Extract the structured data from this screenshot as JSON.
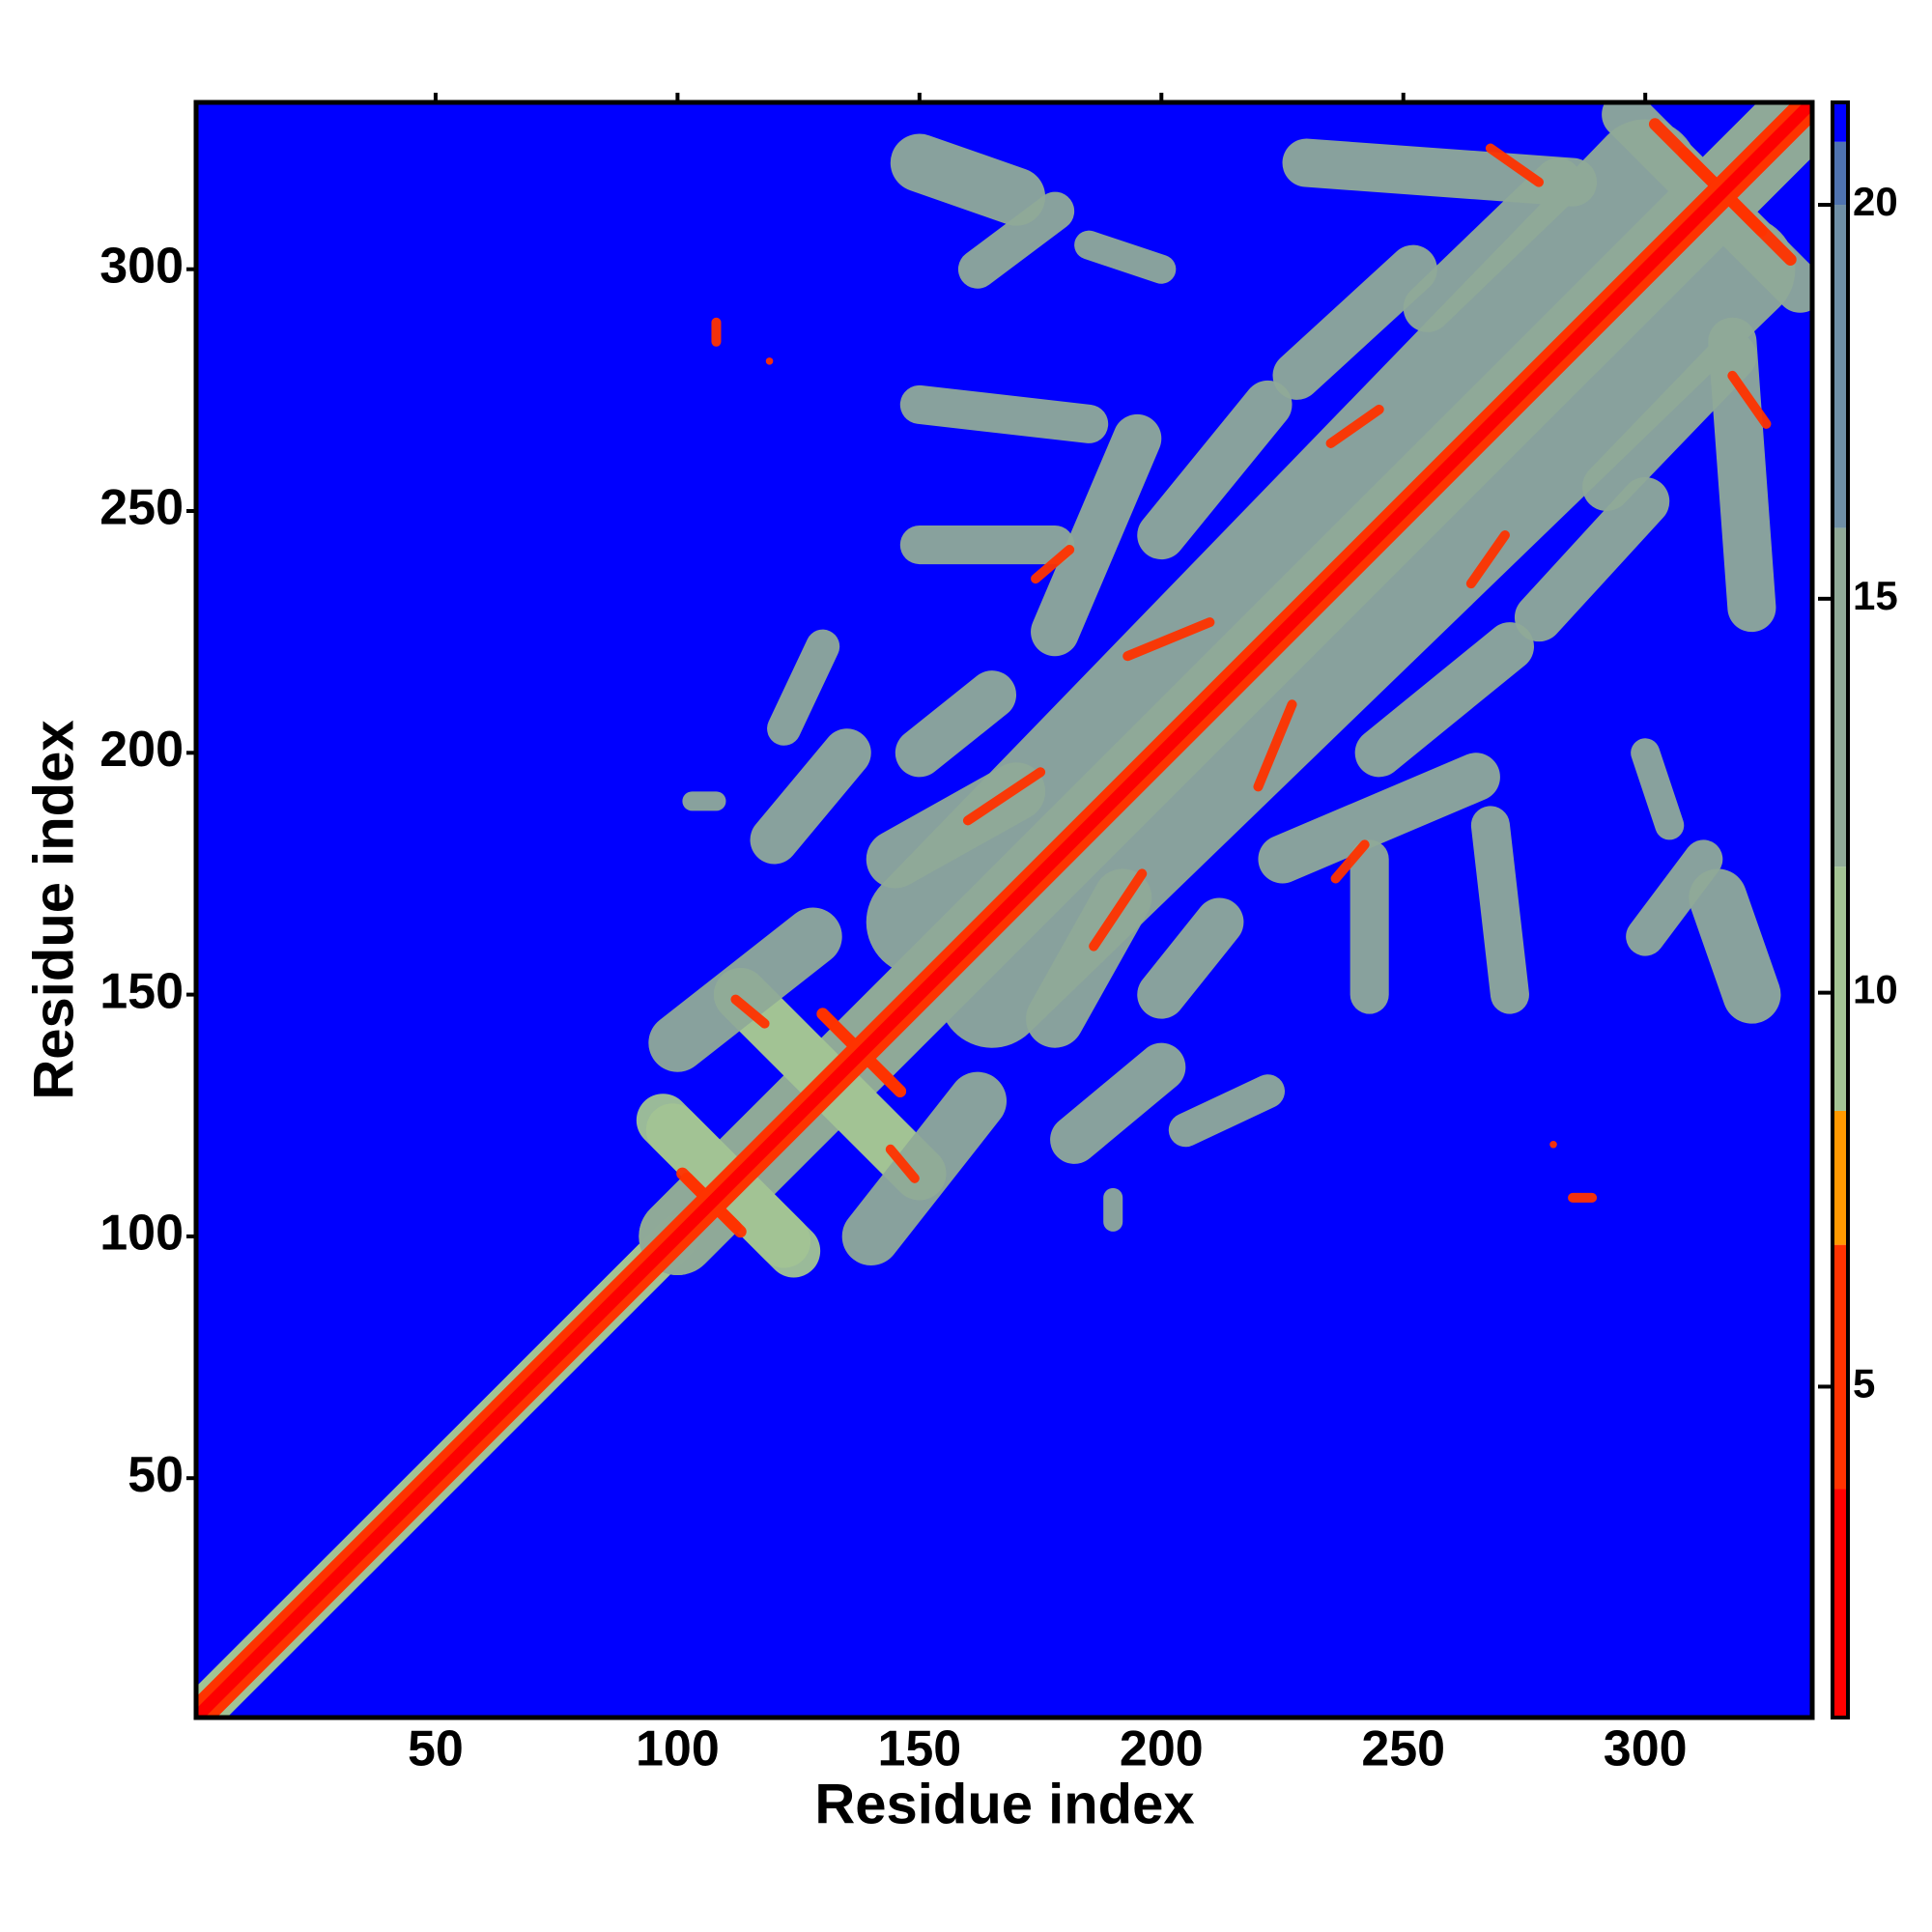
{
  "chart_data": {
    "type": "heatmap",
    "xlabel": "Residue index",
    "ylabel": "Residue index",
    "xlim": [
      0.5,
      334.5
    ],
    "ylim": [
      0.5,
      334.5
    ],
    "xticks": [
      50,
      100,
      150,
      200,
      250,
      300
    ],
    "yticks": [
      50,
      100,
      150,
      200,
      250,
      300
    ],
    "clim": [
      0.8,
      21.3
    ],
    "cticks": [
      5,
      10,
      15,
      20
    ],
    "colorscale": [
      {
        "value": 0.8,
        "color": "#ff0000"
      },
      {
        "value": 3.7,
        "color": "#ff3300"
      },
      {
        "value": 6.8,
        "color": "#ff9900"
      },
      {
        "value": 8.5,
        "color": "#a3c494"
      },
      {
        "value": 11.6,
        "color": "#90aa98"
      },
      {
        "value": 15.9,
        "color": "#6f8fa6"
      },
      {
        "value": 20.0,
        "color": "#4f73b0"
      },
      {
        "value": 20.8,
        "color": "#0000ff"
      }
    ],
    "background": 21,
    "symmetric": true,
    "contacts": [
      {
        "x": [
          1,
          100
        ],
        "y": [
          1,
          100
        ],
        "width": 9,
        "value": 11
      },
      {
        "x": [
          100,
          335
        ],
        "y": [
          100,
          335
        ],
        "width": 16,
        "value": 12
      },
      {
        "x": [
          150,
          300
        ],
        "y": [
          165,
          320
        ],
        "width": 22,
        "value": 14
      },
      {
        "x": [
          97,
          122
        ],
        "y": [
          124,
          99
        ],
        "width": 11,
        "value": 11
      },
      {
        "x": [
          113,
          150
        ],
        "y": [
          150,
          113
        ],
        "width": 11,
        "value": 11
      },
      {
        "x": [
          100,
          128
        ],
        "y": [
          140,
          162
        ],
        "width": 12,
        "value": 12
      },
      {
        "x": [
          120,
          135
        ],
        "y": [
          182,
          200
        ],
        "width": 10,
        "value": 12
      },
      {
        "x": [
          122,
          130
        ],
        "y": [
          205,
          222
        ],
        "width": 7,
        "value": 13
      },
      {
        "x": [
          103,
          108
        ],
        "y": [
          190,
          190
        ],
        "width": 4,
        "value": 13
      },
      {
        "x": [
          145,
          170
        ],
        "y": [
          178,
          192
        ],
        "width": 12,
        "value": 12
      },
      {
        "x": [
          150,
          165
        ],
        "y": [
          200,
          212
        ],
        "width": 10,
        "value": 12
      },
      {
        "x": [
          150,
          178
        ],
        "y": [
          243,
          243
        ],
        "width": 8,
        "value": 12
      },
      {
        "x": [
          150,
          185
        ],
        "y": [
          272,
          268
        ],
        "width": 8,
        "value": 12
      },
      {
        "x": [
          178,
          195
        ],
        "y": [
          225,
          265
        ],
        "width": 10,
        "value": 12
      },
      {
        "x": [
          150,
          170
        ],
        "y": [
          322,
          315
        ],
        "width": 12,
        "value": 12
      },
      {
        "x": [
          162,
          178
        ],
        "y": [
          300,
          312
        ],
        "width": 8,
        "value": 13
      },
      {
        "x": [
          200,
          222
        ],
        "y": [
          245,
          272
        ],
        "width": 10,
        "value": 12
      },
      {
        "x": [
          228,
          252
        ],
        "y": [
          278,
          300
        ],
        "width": 10,
        "value": 12
      },
      {
        "x": [
          230,
          285
        ],
        "y": [
          322,
          318
        ],
        "width": 10,
        "value": 12
      },
      {
        "x": [
          255,
          282
        ],
        "y": [
          292,
          318
        ],
        "width": 10,
        "value": 12
      },
      {
        "x": [
          296,
          326
        ],
        "y": [
          332,
          302
        ],
        "width": 10,
        "value": 12
      },
      {
        "x": [
          185,
          200
        ],
        "y": [
          305,
          300
        ],
        "width": 6,
        "value": 14
      },
      {
        "x": [
          101,
          112
        ],
        "y": [
          113,
          102
        ],
        "width": 2.5,
        "value": 6.5
      },
      {
        "x": [
          130,
          146
        ],
        "y": [
          146,
          130
        ],
        "width": 2.5,
        "value": 6.5
      },
      {
        "x": [
          112,
          118
        ],
        "y": [
          149,
          144
        ],
        "width": 2,
        "value": 6.5
      },
      {
        "x": [
          174,
          181
        ],
        "y": [
          236,
          242
        ],
        "width": 2,
        "value": 6.5
      },
      {
        "x": [
          193,
          210
        ],
        "y": [
          220,
          227
        ],
        "width": 2,
        "value": 6.5
      },
      {
        "x": [
          235,
          245
        ],
        "y": [
          264,
          271
        ],
        "width": 2,
        "value": 6.5
      },
      {
        "x": [
          268,
          278
        ],
        "y": [
          325,
          318
        ],
        "width": 2,
        "value": 6.5
      },
      {
        "x": [
          302,
          324
        ],
        "y": [
          330,
          308
        ],
        "width": 2.5,
        "value": 6.5
      },
      {
        "x": [
          160,
          175
        ],
        "y": [
          186,
          196
        ],
        "width": 2,
        "value": 6.5
      },
      {
        "x": [
          108,
          108
        ],
        "y": [
          285,
          289
        ],
        "width": 2,
        "value": 6.5
      },
      {
        "x": [
          119,
          119
        ],
        "y": [
          281,
          281
        ],
        "width": 1.5,
        "value": 6.5
      },
      {
        "x": [
          1,
          335
        ],
        "y": [
          1,
          335
        ],
        "width": 6,
        "value": 6.5
      },
      {
        "x": [
          1,
          335
        ],
        "y": [
          1,
          335
        ],
        "width": 2.5,
        "value": 2
      }
    ]
  }
}
